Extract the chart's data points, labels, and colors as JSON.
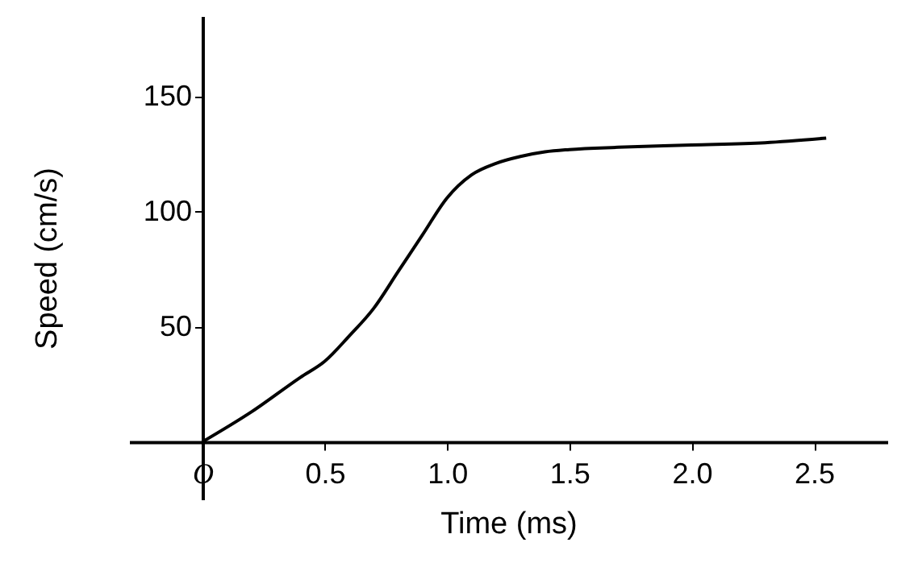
{
  "chart_data": {
    "type": "line",
    "xlabel": "Time (ms)",
    "ylabel": "Speed (cm/s)",
    "x": [
      0,
      0.2,
      0.4,
      0.5,
      0.6,
      0.7,
      0.8,
      0.9,
      1.0,
      1.1,
      1.2,
      1.3,
      1.4,
      1.5,
      1.7,
      2.0,
      2.3,
      2.55
    ],
    "series": [
      {
        "color": "#000000",
        "values": [
          0,
          13,
          28,
          35,
          46,
          58,
          74,
          90,
          106,
          116,
          121,
          124,
          126,
          127,
          128,
          129,
          130,
          132
        ]
      }
    ],
    "xlim": [
      -0.3,
      2.8
    ],
    "ylim": [
      -25,
      185
    ],
    "xticks": [
      {
        "value": 0,
        "label": "O"
      },
      0.5,
      {
        "value": 1,
        "label": "1.0"
      },
      1.5,
      {
        "value": 2,
        "label": "2.0"
      },
      2.5
    ],
    "yticks": [
      50,
      100,
      150
    ],
    "grid": false,
    "marker": "none",
    "line_style": "solid"
  }
}
